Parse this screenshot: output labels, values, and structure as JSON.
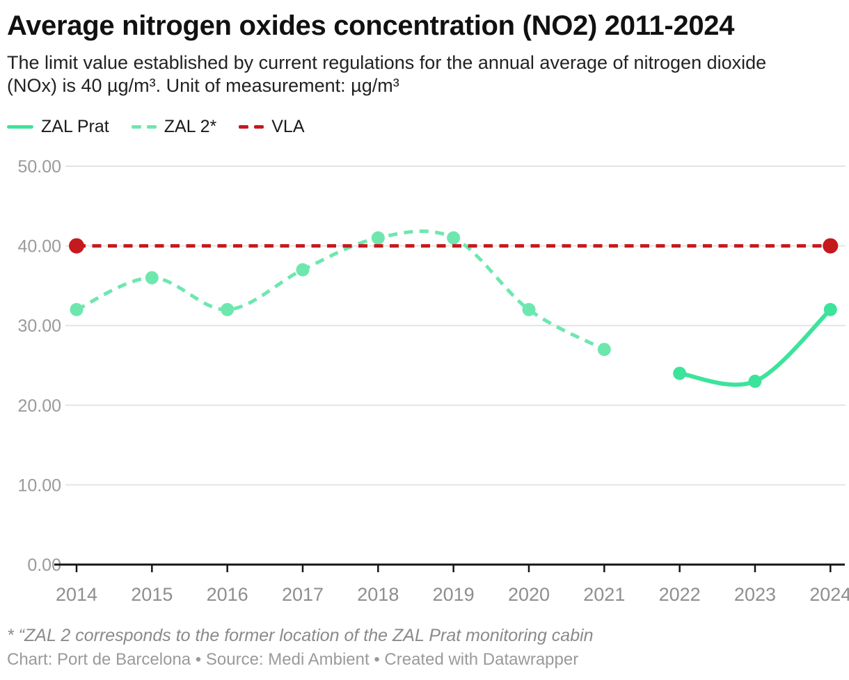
{
  "header": {
    "title": "Average nitrogen oxides concentration (NO2) 2011-2024",
    "subtitle": "The limit value established by current regulations for the annual average of nitrogen dioxide (NOx) is 40 µg/m³. Unit of measurement: µg/m³"
  },
  "legend": {
    "items": [
      {
        "label": "ZAL Prat",
        "color": "#3ce49b",
        "style": "solid"
      },
      {
        "label": "ZAL 2*",
        "color": "#6ee7af",
        "style": "dashed"
      },
      {
        "label": "VLA",
        "color": "#c41a1e",
        "style": "dashed"
      }
    ]
  },
  "chart_data": {
    "type": "line",
    "title": "Average nitrogen oxides concentration (NO2) 2011-2024",
    "xlabel": "",
    "ylabel": "",
    "unit": "µg/m³",
    "xlim": [
      2014,
      2024
    ],
    "ylim": [
      0,
      50
    ],
    "xticks": [
      2014,
      2015,
      2016,
      2017,
      2018,
      2019,
      2020,
      2021,
      2022,
      2023,
      2024
    ],
    "yticks": [
      0,
      10,
      20,
      30,
      40,
      50
    ],
    "ytick_labels": [
      "0.00",
      "10.00",
      "20.00",
      "30.00",
      "40.00",
      "50.00"
    ],
    "grid": "horizontal",
    "legend_position": "top-left",
    "series": [
      {
        "name": "ZAL 2*",
        "color": "#6ee7af",
        "style": "dashed",
        "curve": "smooth",
        "dots": "all",
        "points": [
          {
            "x": 2014,
            "y": 32
          },
          {
            "x": 2015,
            "y": 36
          },
          {
            "x": 2016,
            "y": 32
          },
          {
            "x": 2017,
            "y": 37
          },
          {
            "x": 2018,
            "y": 41
          },
          {
            "x": 2019,
            "y": 41
          },
          {
            "x": 2020,
            "y": 32
          },
          {
            "x": 2021,
            "y": 27
          }
        ]
      },
      {
        "name": "ZAL Prat",
        "color": "#3ce49b",
        "style": "solid",
        "curve": "smooth",
        "dots": "all",
        "points": [
          {
            "x": 2022,
            "y": 24
          },
          {
            "x": 2023,
            "y": 23
          },
          {
            "x": 2024,
            "y": 32
          }
        ]
      },
      {
        "name": "VLA",
        "color": "#c41a1e",
        "style": "dashed",
        "curve": "straight",
        "dots": "ends",
        "points": [
          {
            "x": 2014,
            "y": 40
          },
          {
            "x": 2024,
            "y": 40
          }
        ]
      }
    ]
  },
  "colors": {
    "grid": "#e4e4e4",
    "axis": "#161616",
    "ytick_text": "#9a9a9a",
    "xtick_text": "#8e8e8e"
  },
  "footnote": "* “ZAL 2 corresponds to the former location of the ZAL Prat monitoring cabin",
  "footer": "Chart: Port de Barcelona • Source: Medi Ambient • Created with Datawrapper"
}
